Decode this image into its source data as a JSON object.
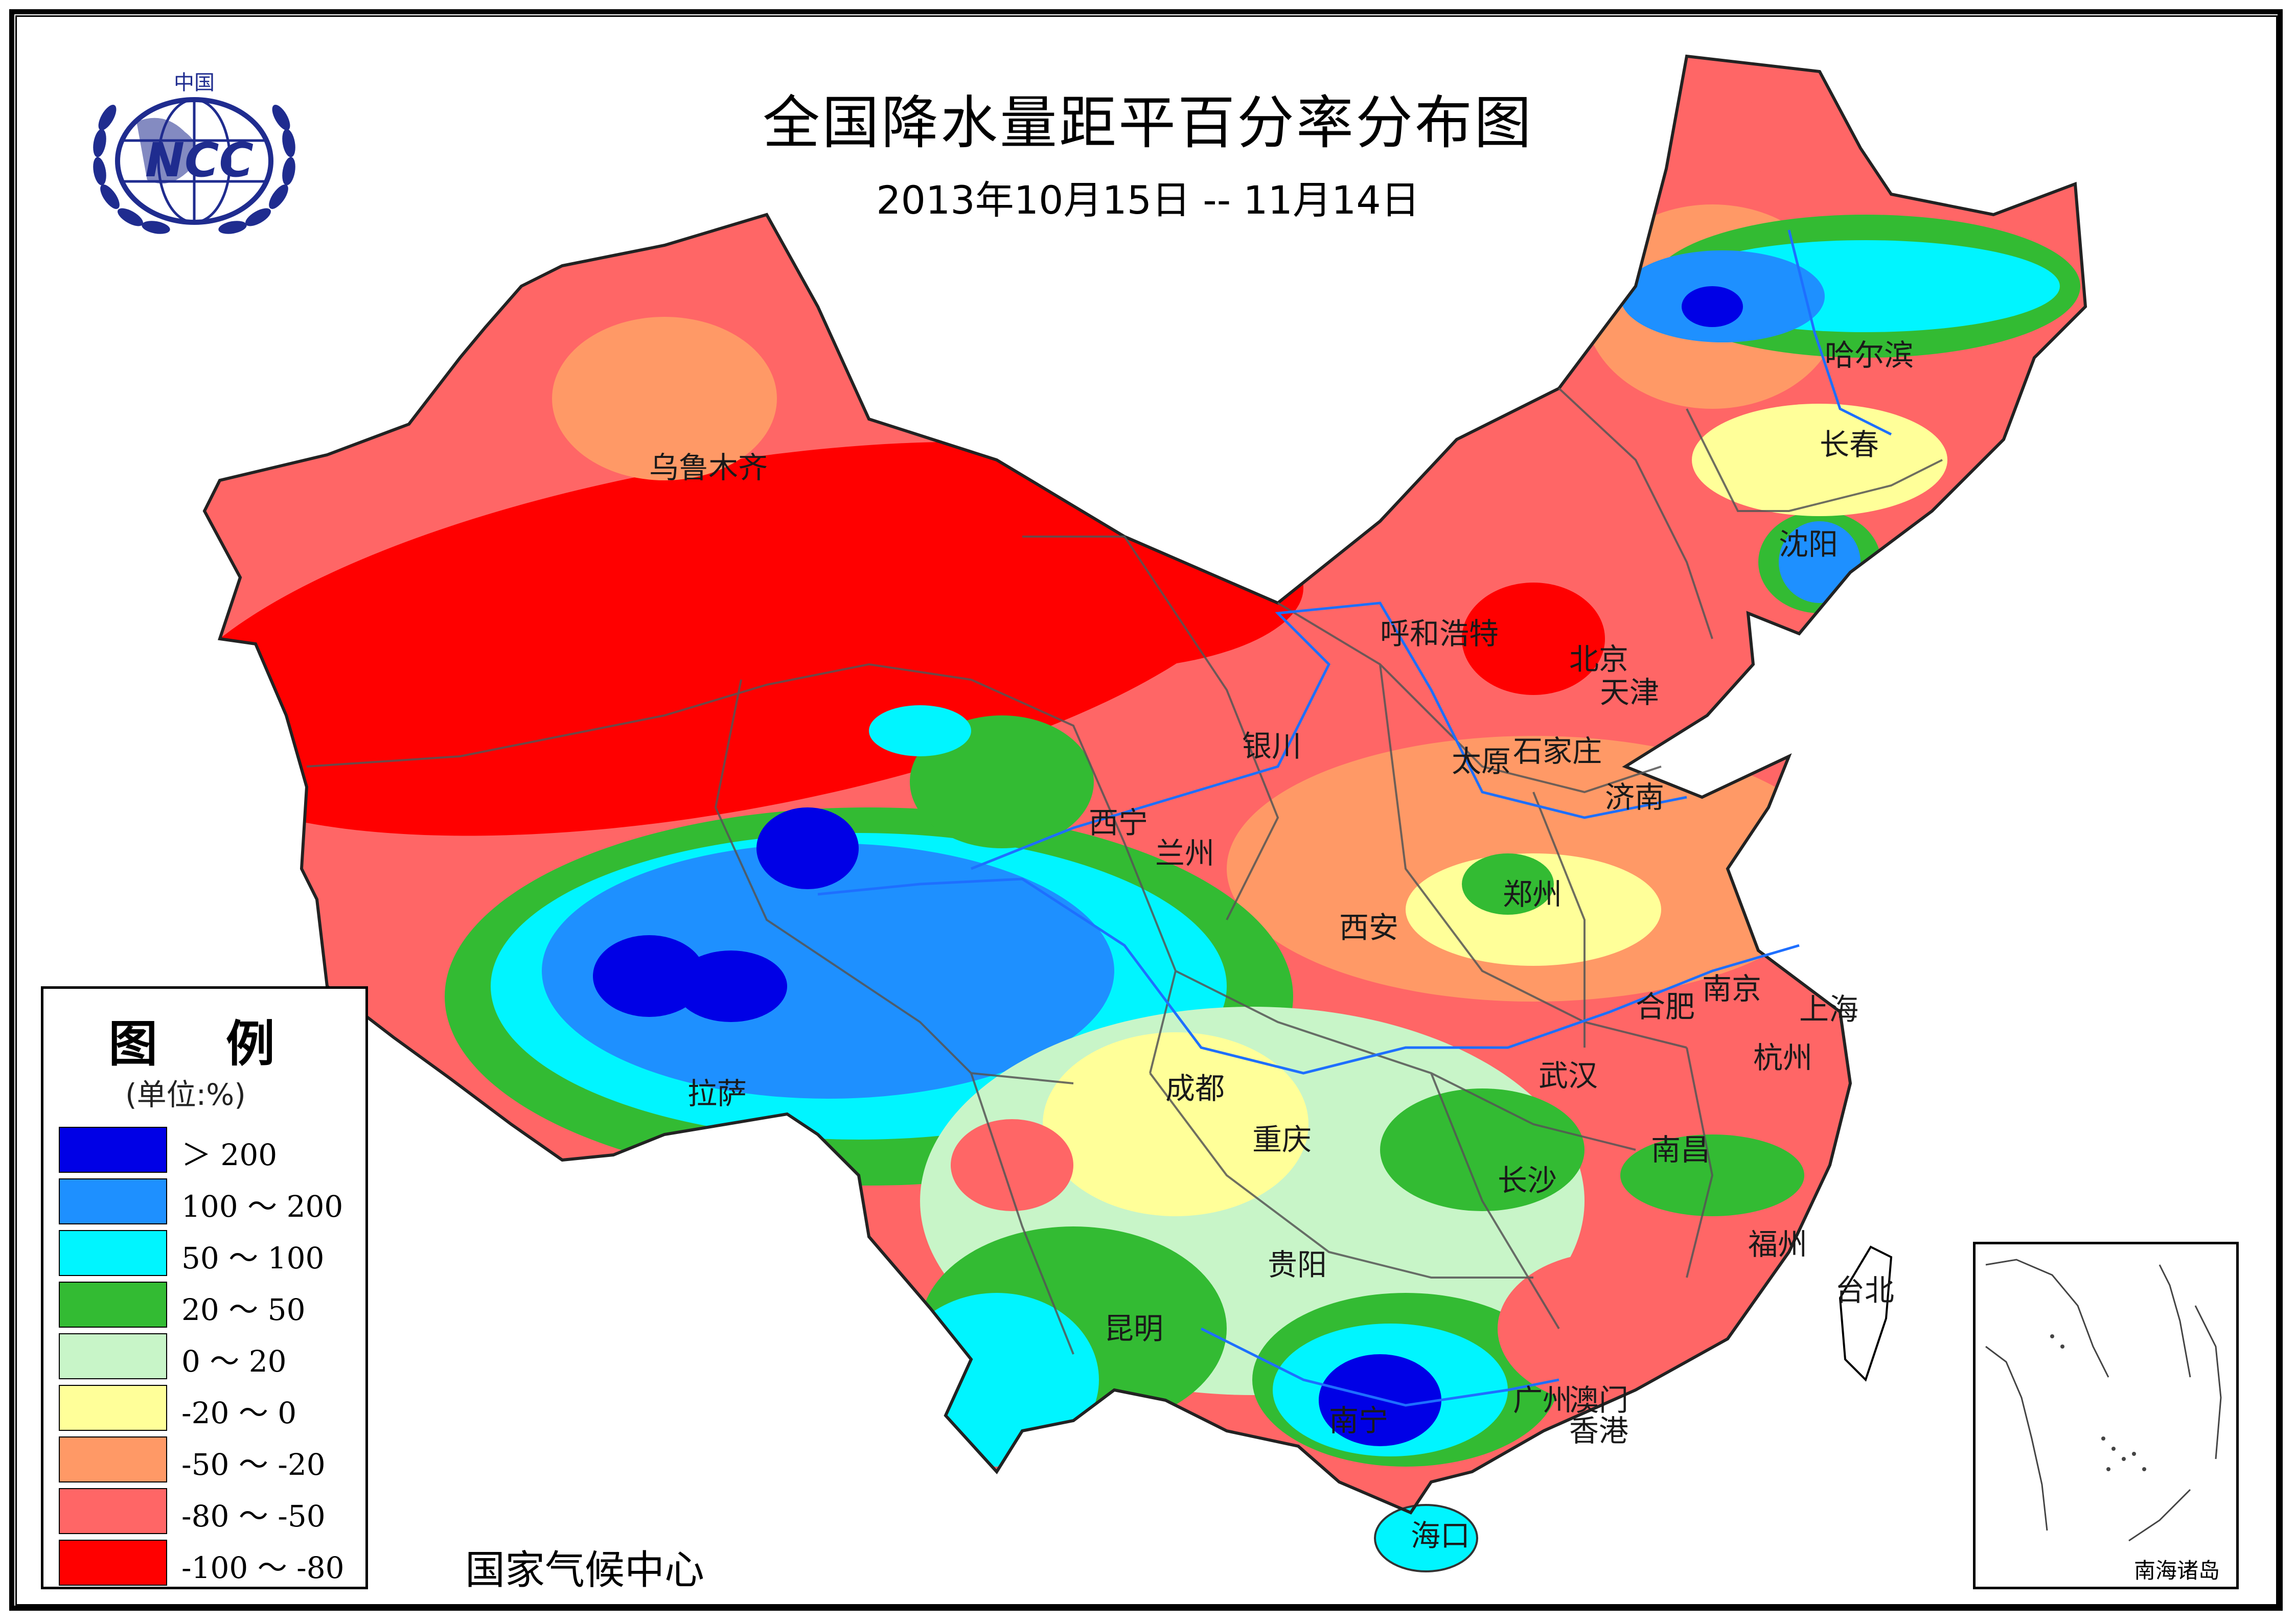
{
  "title": "全国降水量距平百分率分布图",
  "subtitle": "2013年10月15日 -- 11月14日",
  "logo": {
    "text_top": "中国",
    "text_main": "NCC"
  },
  "cities": [
    "乌鲁木齐",
    "哈尔滨",
    "长春",
    "沈阳",
    "呼和浩特",
    "北京",
    "天津",
    "银川",
    "太原",
    "石家庄",
    "济南",
    "西宁",
    "兰州",
    "郑州",
    "西安",
    "合肥",
    "南京",
    "上海",
    "杭州",
    "武汉",
    "成都",
    "拉萨",
    "重庆",
    "南昌",
    "长沙",
    "福州",
    "台北",
    "贵阳",
    "昆明",
    "广州",
    "澳门",
    "香港",
    "南宁",
    "海口"
  ],
  "legend": {
    "title": "图 例",
    "unit": "(单位:%)",
    "items": [
      {
        "range": "＞ 200",
        "color": "#0000e6"
      },
      {
        "range": "100 ～ 200",
        "color": "#1e90ff"
      },
      {
        "range": "50 ～ 100",
        "color": "#00f5ff"
      },
      {
        "range": "20 ～ 50",
        "color": "#33bb33"
      },
      {
        "range": "0 ～ 20",
        "color": "#c8f5c8"
      },
      {
        "range": "-20 ～ 0",
        "color": "#ffff99"
      },
      {
        "range": "-50 ～ -20",
        "color": "#ff9966"
      },
      {
        "range": "-80 ～ -50",
        "color": "#ff6666"
      },
      {
        "range": "-100 ～ -80",
        "color": "#ff0000"
      }
    ]
  },
  "footer": "国家气候中心",
  "inset_label": "南海诸岛"
}
